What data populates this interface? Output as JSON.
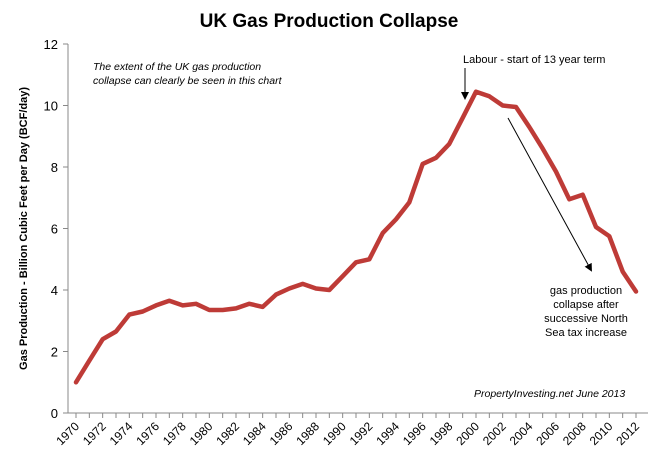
{
  "chart_data": {
    "type": "line",
    "title": "UK Gas Production Collapse",
    "ylabel": "Gas Production - Billion Cubic Feet per Day (BCF/day)",
    "xlabel": "",
    "ylim": [
      0,
      12
    ],
    "yticks": [
      0,
      2,
      4,
      6,
      8,
      10,
      12
    ],
    "xlim": [
      1970,
      2012
    ],
    "xticks": [
      "1970",
      "1972",
      "1974",
      "1976",
      "1978",
      "1980",
      "1982",
      "1984",
      "1986",
      "1988",
      "1990",
      "1992",
      "1994",
      "1996",
      "1998",
      "2000",
      "2002",
      "2004",
      "2006",
      "2008",
      "2010",
      "2012"
    ],
    "grid": false,
    "series": [
      {
        "color": "#be3b37",
        "x": [
          1970,
          1971,
          1972,
          1973,
          1974,
          1975,
          1976,
          1977,
          1978,
          1979,
          1980,
          1981,
          1982,
          1983,
          1984,
          1985,
          1986,
          1987,
          1988,
          1989,
          1990,
          1991,
          1992,
          1993,
          1994,
          1995,
          1996,
          1997,
          1998,
          1999,
          2000,
          2001,
          2002,
          2003,
          2004,
          2005,
          2006,
          2007,
          2008,
          2009,
          2010,
          2011,
          2012
        ],
        "values": [
          1.0,
          1.7,
          2.4,
          2.65,
          3.2,
          3.3,
          3.5,
          3.65,
          3.5,
          3.55,
          3.35,
          3.35,
          3.4,
          3.55,
          3.45,
          3.85,
          4.05,
          4.2,
          4.05,
          4.0,
          4.45,
          4.9,
          5.0,
          5.85,
          6.3,
          6.85,
          8.1,
          8.3,
          8.75,
          9.6,
          10.45,
          10.3,
          10.0,
          9.95,
          9.3,
          8.6,
          7.85,
          6.95,
          7.1,
          6.05,
          5.75,
          4.6,
          3.95
        ]
      }
    ],
    "annotations": {
      "intro": [
        "The extent of the UK gas production",
        "collapse can clearly be seen in this chart"
      ],
      "labour": "Labour - start of 13 year term",
      "collapse": [
        "gas production",
        "collapse after",
        "successive North",
        "Sea tax increase"
      ],
      "source": "PropertyInvesting.net  June 2013"
    }
  }
}
